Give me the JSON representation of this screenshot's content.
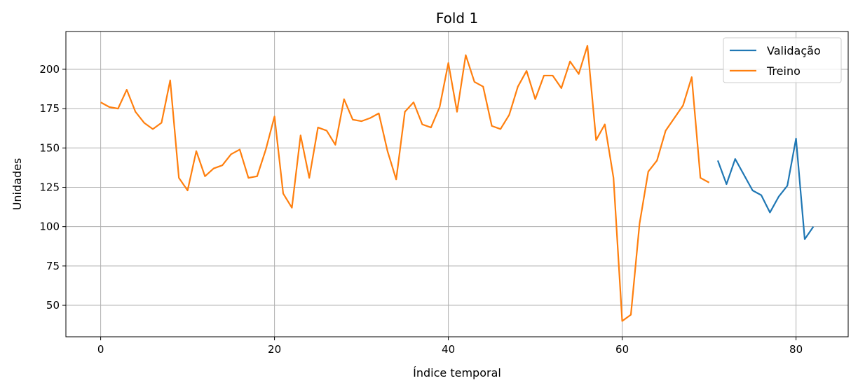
{
  "chart_data": {
    "type": "line",
    "title": "Fold 1",
    "xlabel": "Índice temporal",
    "ylabel": "Unidades",
    "xlim": [
      -4,
      86
    ],
    "ylim": [
      30,
      224
    ],
    "xticks": [
      0,
      20,
      40,
      60,
      80
    ],
    "yticks": [
      50,
      75,
      100,
      125,
      150,
      175,
      200
    ],
    "grid": true,
    "legend_position": "top-right",
    "series": [
      {
        "name": "Validação",
        "color": "#1f77b4",
        "x": [
          71,
          72,
          73,
          74,
          75,
          76,
          77,
          78,
          79,
          80,
          81,
          82
        ],
        "values": [
          142,
          127,
          143,
          133,
          123,
          120,
          109,
          119,
          126,
          156,
          92,
          100
        ]
      },
      {
        "name": "Treino",
        "color": "#ff7f0e",
        "x": [
          0,
          1,
          2,
          3,
          4,
          5,
          6,
          7,
          8,
          9,
          10,
          11,
          12,
          13,
          14,
          15,
          16,
          17,
          18,
          19,
          20,
          21,
          22,
          23,
          24,
          25,
          26,
          27,
          28,
          29,
          30,
          31,
          32,
          33,
          34,
          35,
          36,
          37,
          38,
          39,
          40,
          41,
          42,
          43,
          44,
          45,
          46,
          47,
          48,
          49,
          50,
          51,
          52,
          53,
          54,
          55,
          56,
          57,
          58,
          59,
          60,
          61,
          62,
          63,
          64,
          65,
          66,
          67,
          68,
          69,
          70
        ],
        "values": [
          179,
          176,
          175,
          187,
          173,
          166,
          162,
          166,
          193,
          131,
          123,
          148,
          132,
          137,
          139,
          146,
          149,
          131,
          132,
          149,
          170,
          121,
          112,
          158,
          131,
          163,
          161,
          152,
          181,
          168,
          167,
          169,
          172,
          148,
          130,
          173,
          179,
          165,
          163,
          176,
          204,
          173,
          209,
          192,
          189,
          164,
          162,
          171,
          189,
          199,
          181,
          196,
          196,
          188,
          205,
          197,
          215,
          155,
          165,
          131,
          40,
          44,
          102,
          135,
          142,
          161,
          169,
          177,
          195,
          131,
          128
        ]
      }
    ]
  }
}
